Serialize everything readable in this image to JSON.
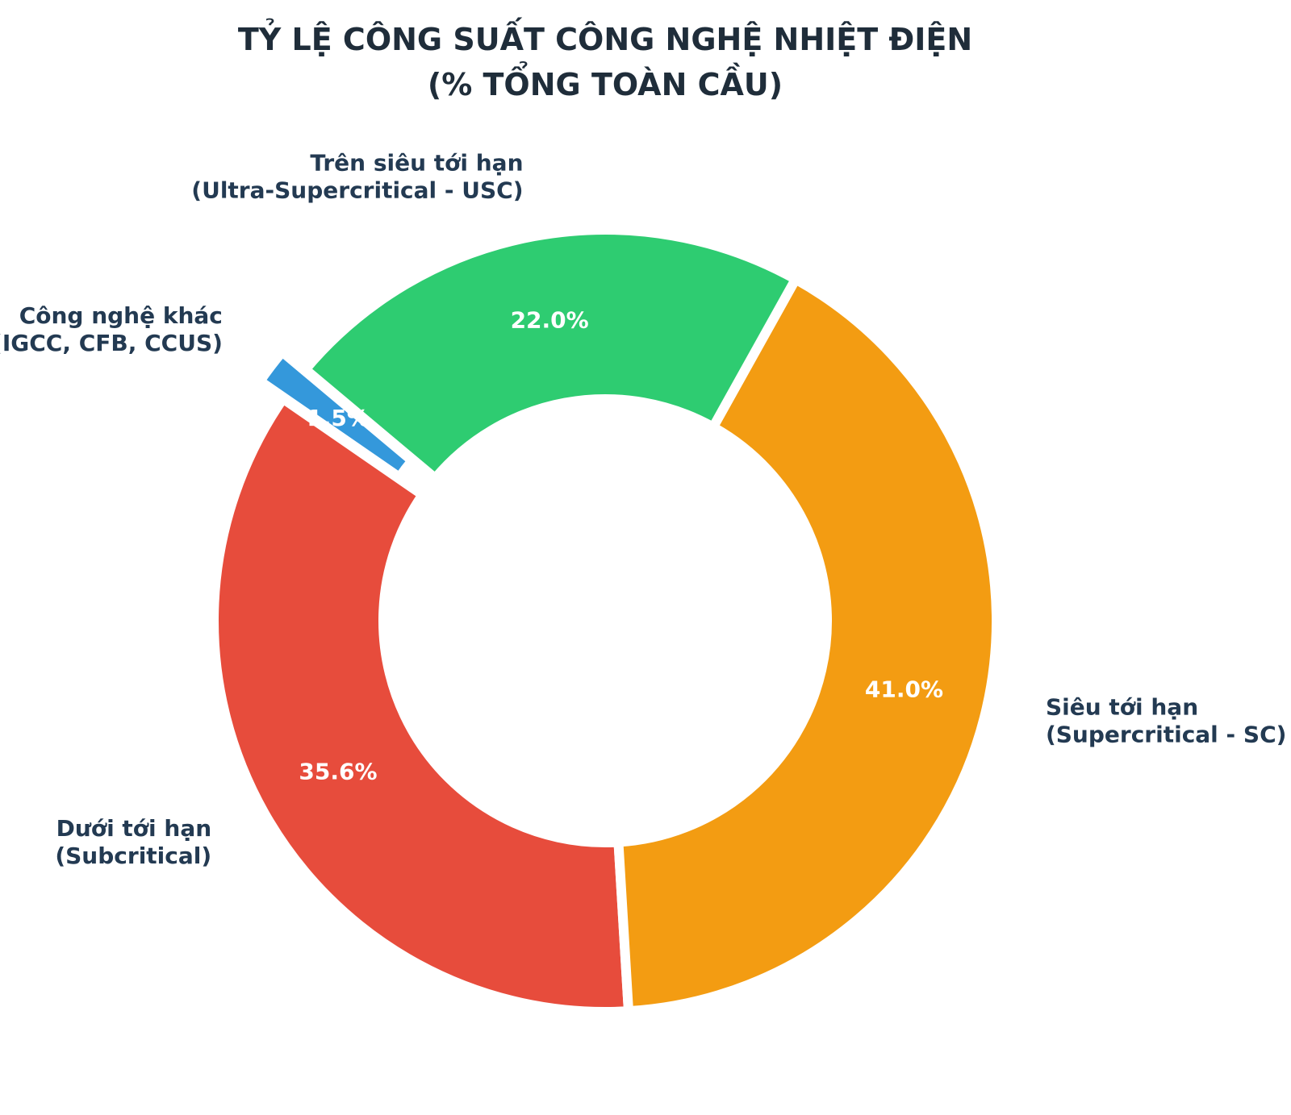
{
  "chart_data": {
    "type": "pie",
    "title_lines": [
      "TỶ LỆ CÔNG SUẤT CÔNG NGHỆ NHIỆT ĐIỆN",
      "(% TỔNG TOÀN CẦU)"
    ],
    "donut": true,
    "start_angle_deg": 140,
    "direction": "counterclockwise",
    "slices": [
      {
        "label_lines": [
          "Công nghệ khác",
          "(IGCC, CFB, CCUS)"
        ],
        "value": 1.5,
        "percent_label": "1.5%",
        "color": "#3498db",
        "exploded": true
      },
      {
        "label_lines": [
          "Dưới tới hạn",
          "(Subcritical)"
        ],
        "value": 35.6,
        "percent_label": "35.6%",
        "color": "#e74c3c",
        "exploded": false
      },
      {
        "label_lines": [
          "Siêu tới hạn",
          "(Supercritical - SC)"
        ],
        "value": 41.0,
        "percent_label": "41.0%",
        "color": "#f39c12",
        "exploded": false
      },
      {
        "label_lines": [
          "Trên siêu tới hạn",
          "(Ultra-Supercritical - USC)"
        ],
        "value": 22.0,
        "percent_label": "22.0%",
        "color": "#2ecc71",
        "exploded": false
      }
    ]
  }
}
